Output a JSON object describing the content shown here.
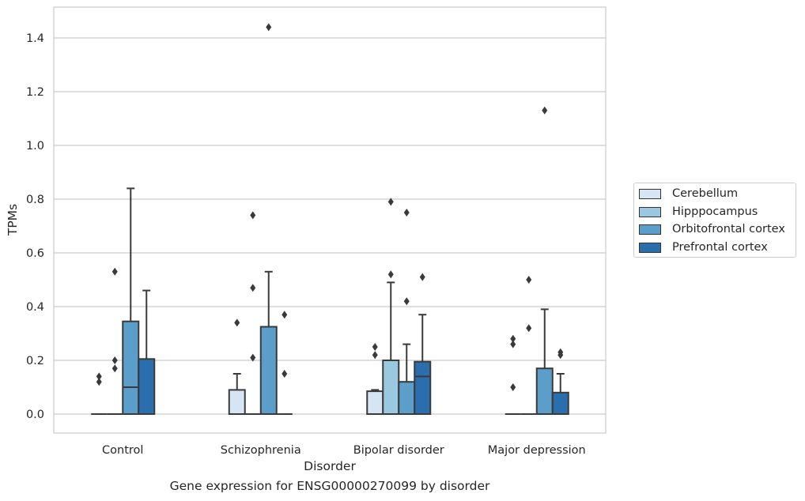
{
  "chart_data": {
    "type": "box",
    "title": "",
    "xlabel": "Disorder",
    "ylabel": "TPMs",
    "caption": "Gene expression for ENSG00000270099 by disorder",
    "ylim": [
      -0.07,
      1.52
    ],
    "yticks": [
      "0.0",
      "0.2",
      "0.4",
      "0.6",
      "0.8",
      "1.0",
      "1.2",
      "1.4"
    ],
    "grid": true,
    "legend_position": "right",
    "categories": [
      "Control",
      "Schizophrenia",
      "Bipolar disorder",
      "Major depression"
    ],
    "series": [
      {
        "name": "Cerebellum",
        "color": "#d6e5f3",
        "boxes": [
          {
            "q1": 0,
            "median": 0,
            "q3": 0,
            "whisker_low": 0,
            "whisker_high": 0,
            "outliers": [
              0.12,
              0.14
            ]
          },
          {
            "q1": 0,
            "median": 0,
            "q3": 0.09,
            "whisker_low": 0,
            "whisker_high": 0.15,
            "outliers": [
              0.34
            ]
          },
          {
            "q1": 0,
            "median": 0,
            "q3": 0.085,
            "whisker_low": 0,
            "whisker_high": 0.09,
            "outliers": [
              0.22,
              0.25
            ]
          },
          {
            "q1": 0,
            "median": 0,
            "q3": 0,
            "whisker_low": 0,
            "whisker_high": 0,
            "outliers": [
              0.1,
              0.26,
              0.28
            ]
          }
        ]
      },
      {
        "name": "Hipppocampus",
        "color": "#9ac8e0",
        "boxes": [
          {
            "q1": 0,
            "median": 0,
            "q3": 0,
            "whisker_low": 0,
            "whisker_high": 0,
            "outliers": [
              0.17,
              0.2,
              0.53
            ]
          },
          {
            "q1": 0,
            "median": 0,
            "q3": 0,
            "whisker_low": 0,
            "whisker_high": 0,
            "outliers": [
              0.21,
              0.47,
              0.74
            ]
          },
          {
            "q1": 0,
            "median": 0,
            "q3": 0.2,
            "whisker_low": 0,
            "whisker_high": 0.49,
            "outliers": [
              0.52,
              0.79
            ]
          },
          {
            "q1": 0,
            "median": 0,
            "q3": 0,
            "whisker_low": 0,
            "whisker_high": 0,
            "outliers": [
              0.32,
              0.5
            ]
          }
        ]
      },
      {
        "name": "Orbitofrontal cortex",
        "color": "#5a9ec9",
        "boxes": [
          {
            "q1": 0,
            "median": 0.1,
            "q3": 0.345,
            "whisker_low": 0,
            "whisker_high": 0.84,
            "outliers": []
          },
          {
            "q1": 0,
            "median": 0,
            "q3": 0.325,
            "whisker_low": 0,
            "whisker_high": 0.53,
            "outliers": [
              1.44
            ]
          },
          {
            "q1": 0,
            "median": 0,
            "q3": 0.12,
            "whisker_low": 0,
            "whisker_high": 0.26,
            "outliers": [
              0.42,
              0.75
            ]
          },
          {
            "q1": 0,
            "median": 0,
            "q3": 0.17,
            "whisker_low": 0,
            "whisker_high": 0.39,
            "outliers": [
              1.13
            ]
          }
        ]
      },
      {
        "name": "Prefrontal cortex",
        "color": "#2a6ead",
        "boxes": [
          {
            "q1": 0,
            "median": 0,
            "q3": 0.205,
            "whisker_low": 0,
            "whisker_high": 0.46,
            "outliers": []
          },
          {
            "q1": 0,
            "median": 0,
            "q3": 0,
            "whisker_low": 0,
            "whisker_high": 0,
            "outliers": [
              0.15,
              0.37
            ]
          },
          {
            "q1": 0,
            "median": 0.14,
            "q3": 0.195,
            "whisker_low": 0,
            "whisker_high": 0.37,
            "outliers": [
              0.51
            ]
          },
          {
            "q1": 0,
            "median": 0,
            "q3": 0.08,
            "whisker_low": 0,
            "whisker_high": 0.15,
            "outliers": [
              0.22,
              0.23
            ]
          }
        ]
      }
    ]
  }
}
